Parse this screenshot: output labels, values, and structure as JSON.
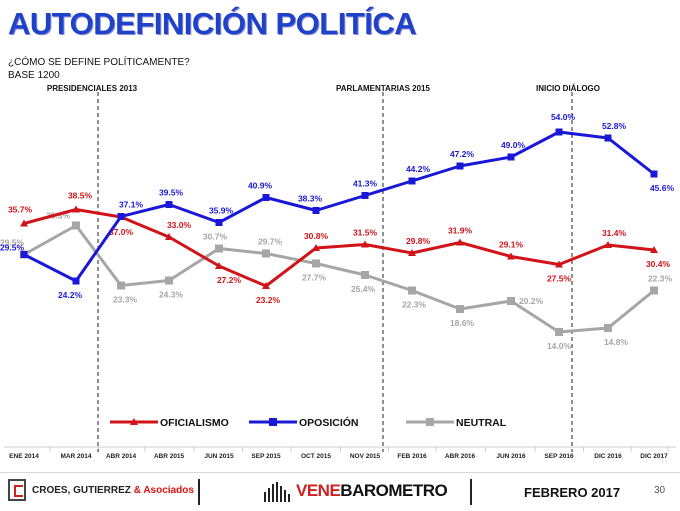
{
  "title": "AUTODEFINICIÓN POLITÍCA",
  "question": "¿CÓMO SE DEFINE POLÍTICAMENTE?",
  "base": "BASE 1200",
  "footer": {
    "org1": "CROES, GUTIERREZ",
    "org1_amp": "& Asociados",
    "org2_a": "VENE",
    "org2_b": "BAROMETRO",
    "date": "FEBRERO 2017",
    "page": "30"
  },
  "chart_data": {
    "type": "line",
    "title": "AUTODEFINICIÓN POLITÍCA",
    "categories": [
      "ENE 2014",
      "MAR 2014",
      "ABR 2014",
      "ABR 2015",
      "JUN 2015",
      "SEP 2015",
      "OCT 2015",
      "NOV 2015",
      "FEB 2016",
      "ABR 2016",
      "JUN 2016",
      "SEP 2016",
      "DIC 2016",
      "DIC 2017"
    ],
    "series": [
      {
        "name": "OFICIALISMO",
        "color": "#d0141a",
        "values": [
          35.7,
          38.5,
          37.0,
          33.0,
          27.2,
          23.2,
          30.8,
          31.5,
          29.8,
          31.9,
          29.1,
          27.5,
          31.4,
          30.4
        ]
      },
      {
        "name": "OPOSICIÓN",
        "color": "#1a18d8",
        "values": [
          29.5,
          24.2,
          37.1,
          39.5,
          35.9,
          40.9,
          38.3,
          41.3,
          44.2,
          47.2,
          49.0,
          54.0,
          52.8,
          45.6
        ]
      },
      {
        "name": "NEUTRAL",
        "color": "#a6a6a6",
        "values": [
          29.5,
          35.3,
          23.3,
          24.3,
          30.7,
          29.7,
          27.7,
          25.4,
          22.3,
          18.6,
          20.2,
          14.0,
          14.8,
          22.3
        ]
      }
    ],
    "events": [
      {
        "label": "PRESIDENCIALES 2013"
      },
      {
        "label": "PARLAMENTARIAS 2015"
      },
      {
        "label": "INICIO DIÁLOGO"
      }
    ],
    "legend_position": "bottom"
  }
}
